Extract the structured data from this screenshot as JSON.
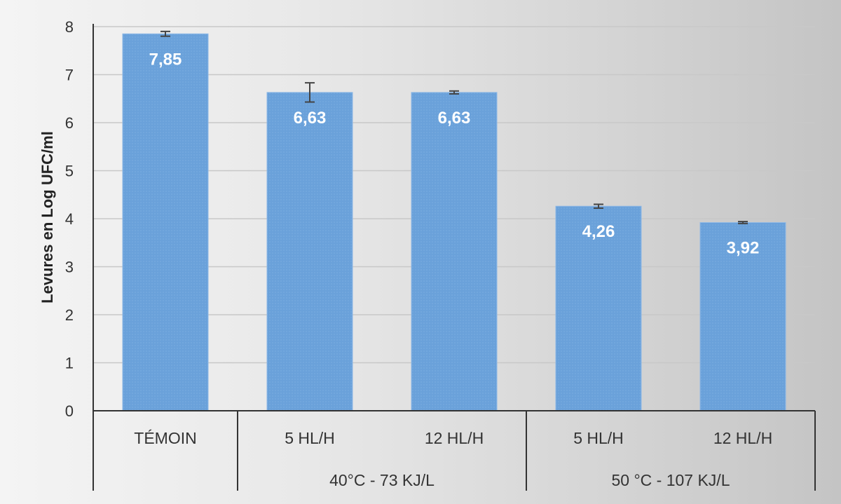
{
  "chart_data": {
    "type": "bar",
    "title": "",
    "xlabel": "",
    "ylabel": "Levures en Log UFC/ml",
    "ylim": [
      0,
      8
    ],
    "yticks": [
      0,
      1,
      2,
      3,
      4,
      5,
      6,
      7,
      8
    ],
    "grid": true,
    "categories": [
      "TÉMOIN",
      "5 HL/H",
      "12 HL/H",
      "5 HL/H",
      "12 HL/H"
    ],
    "groups": [
      {
        "label": "",
        "span": [
          0,
          0
        ]
      },
      {
        "label": "40°C - 73 KJ/L",
        "span": [
          1,
          2
        ]
      },
      {
        "label": "50 °C - 107 KJ/L",
        "span": [
          3,
          4
        ]
      }
    ],
    "values": [
      7.85,
      6.63,
      6.63,
      4.26,
      3.92
    ],
    "value_labels": [
      "7,85",
      "6,63",
      "6,63",
      "4,26",
      "3,92"
    ],
    "error": [
      0.05,
      0.2,
      0.03,
      0.04,
      0.02
    ],
    "colors": {
      "bar": "#6aa1da",
      "bar_edge": "#8db8e6",
      "grid": "#c8c8c8",
      "axis": "#333333",
      "value_label": "#ffffff"
    }
  }
}
